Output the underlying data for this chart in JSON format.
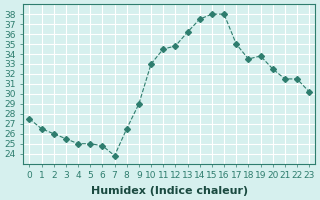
{
  "xlabel": "Humidex (Indice chaleur)",
  "x_values": [
    0,
    1,
    2,
    3,
    4,
    5,
    6,
    7,
    8,
    9,
    10,
    11,
    12,
    13,
    14,
    15,
    16,
    17,
    18,
    19,
    20,
    21,
    22,
    23
  ],
  "y_values": [
    27.5,
    26.5,
    26.0,
    25.5,
    25.0,
    25.0,
    24.8,
    23.8,
    26.5,
    29.0,
    33.0,
    34.5,
    34.8,
    36.2,
    37.5,
    38.0,
    38.0,
    35.0,
    33.5,
    33.8,
    32.5,
    31.5,
    31.5,
    30.2
  ],
  "ylim": [
    23,
    39
  ],
  "yticks": [
    24,
    25,
    26,
    27,
    28,
    29,
    30,
    31,
    32,
    33,
    34,
    35,
    36,
    37,
    38
  ],
  "line_color": "#2e7d6e",
  "marker": "D",
  "marker_size": 3,
  "line_width": 0.8,
  "bg_color": "#d6f0ee",
  "grid_color": "#ffffff",
  "tick_label_fontsize": 6.5,
  "xlabel_fontsize": 8
}
